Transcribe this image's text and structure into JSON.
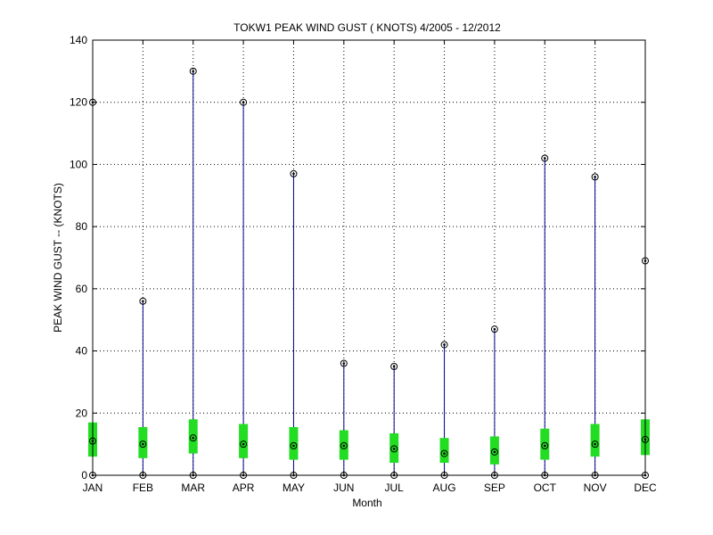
{
  "chart_data": {
    "type": "box",
    "title": "TOKW1  PEAK WIND GUST ( KNOTS) 4/2005 - 12/2012",
    "xlabel": "Month",
    "ylabel": "PEAK WIND GUST -- (KNOTS)",
    "ylim": [
      0,
      140
    ],
    "yticks": [
      "0",
      "20",
      "40",
      "60",
      "80",
      "100",
      "120",
      "140"
    ],
    "grid": true,
    "categories": [
      "JAN",
      "FEB",
      "MAR",
      "APR",
      "MAY",
      "JUN",
      "JUL",
      "AUG",
      "SEP",
      "OCT",
      "NOV",
      "DEC"
    ],
    "min": [
      0,
      0,
      0,
      0,
      0,
      0,
      0,
      0,
      0,
      0,
      0,
      0
    ],
    "max": [
      120,
      56,
      130,
      120,
      97,
      36,
      35,
      42,
      47,
      102,
      96,
      69
    ],
    "mean": [
      11,
      10,
      12,
      10,
      9.5,
      9.5,
      8.5,
      7,
      7.5,
      9.5,
      10,
      11.5
    ],
    "box_low": [
      6,
      5.5,
      7,
      5.5,
      5,
      5,
      4,
      4,
      3.5,
      5,
      6,
      6.5
    ],
    "box_high": [
      17,
      15.5,
      18,
      16.5,
      15.5,
      14.5,
      13.5,
      12,
      12.5,
      15,
      16.5,
      18
    ],
    "colors": {
      "whisker": "#00008b",
      "box": "#22dd22",
      "marker": "#000000"
    }
  }
}
